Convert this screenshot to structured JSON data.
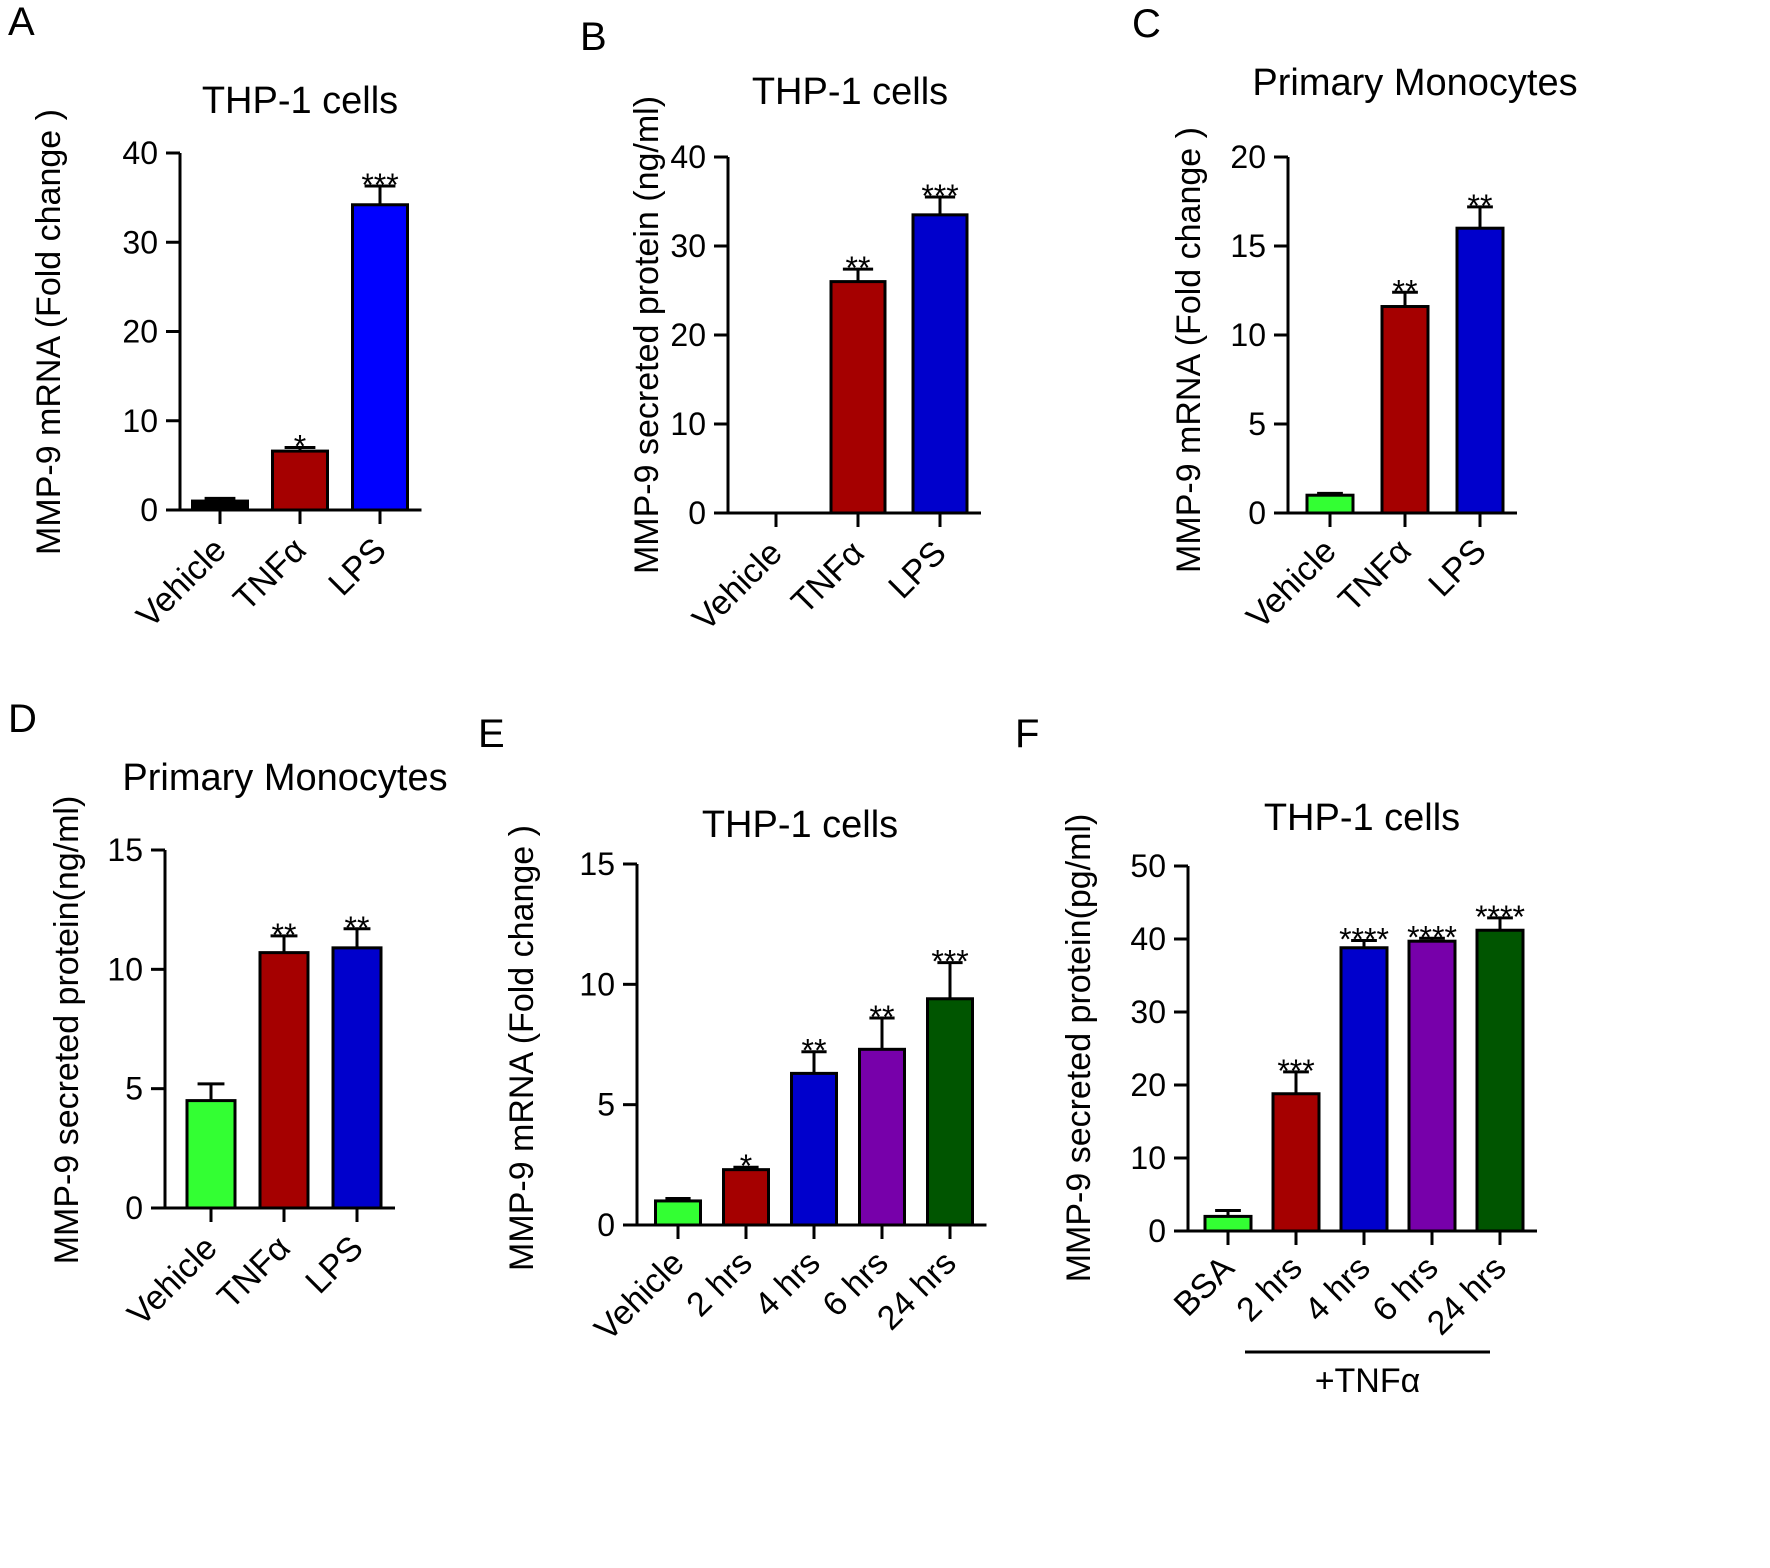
{
  "figure_title": "",
  "chart_data": [
    {
      "panel": "A",
      "type": "bar",
      "title": "THP-1 cells",
      "xlabel": "",
      "ylabel": "MMP-9 mRNA (Fold change )",
      "categories": [
        "Vehicle",
        "TNFα",
        "LPS"
      ],
      "values": [
        1,
        6.6,
        34.2
      ],
      "errors": [
        0.3,
        0.4,
        2.1
      ],
      "significance": [
        "",
        "*",
        "***"
      ],
      "colors": [
        "#000000",
        "#a50000",
        "#0000ff"
      ],
      "ylim": [
        0,
        40
      ],
      "yticks": [
        0,
        10,
        20,
        30,
        40
      ],
      "group_label": ""
    },
    {
      "panel": "B",
      "type": "bar",
      "title": "THP-1 cells",
      "xlabel": "",
      "ylabel": "MMP-9  secreted protein (ng/ml)",
      "categories": [
        "Vehicle",
        "TNFα",
        "LPS"
      ],
      "values": [
        0,
        26,
        33.5
      ],
      "errors": [
        0,
        1.4,
        2.0
      ],
      "significance": [
        "",
        "**",
        "***"
      ],
      "colors": [
        "#000000",
        "#a50000",
        "#0000cc"
      ],
      "ylim": [
        0,
        40
      ],
      "yticks": [
        0,
        10,
        20,
        30,
        40
      ],
      "group_label": ""
    },
    {
      "panel": "C",
      "type": "bar",
      "title": "Primary Monocytes",
      "xlabel": "",
      "ylabel": "MMP-9 mRNA (Fold change )",
      "categories": [
        "Vehicle",
        "TNFα",
        "LPS"
      ],
      "values": [
        1,
        11.6,
        16
      ],
      "errors": [
        0.1,
        0.8,
        1.2
      ],
      "significance": [
        "",
        "**",
        "**"
      ],
      "colors": [
        "#33ff33",
        "#a50000",
        "#0000cc"
      ],
      "ylim": [
        0,
        20
      ],
      "yticks": [
        0,
        5,
        10,
        15,
        20
      ],
      "group_label": ""
    },
    {
      "panel": "D",
      "type": "bar",
      "title": "Primary Monocytes",
      "xlabel": "",
      "ylabel": "MMP-9 secreted protein(ng/ml)",
      "categories": [
        "Vehicle",
        "TNFα",
        "LPS"
      ],
      "values": [
        4.5,
        10.7,
        10.9
      ],
      "errors": [
        0.7,
        0.7,
        0.8
      ],
      "significance": [
        "",
        "**",
        "**"
      ],
      "colors": [
        "#33ff33",
        "#a50000",
        "#0000cc"
      ],
      "ylim": [
        0,
        15
      ],
      "yticks": [
        0,
        5,
        10,
        15
      ],
      "group_label": ""
    },
    {
      "panel": "E",
      "type": "bar",
      "title": "THP-1 cells",
      "xlabel": "",
      "ylabel": "MMP-9 mRNA (Fold change )",
      "categories": [
        "Vehicle",
        "2 hrs",
        "4 hrs",
        "6 hrs",
        "24 hrs"
      ],
      "values": [
        1,
        2.3,
        6.3,
        7.3,
        9.4
      ],
      "errors": [
        0.1,
        0.1,
        0.9,
        1.3,
        1.5
      ],
      "significance": [
        "",
        "*",
        "**",
        "**",
        "***"
      ],
      "colors": [
        "#33ff33",
        "#a50000",
        "#0000cc",
        "#7700aa",
        "#005500"
      ],
      "ylim": [
        0,
        15
      ],
      "yticks": [
        0,
        5,
        10,
        15
      ],
      "group_label": ""
    },
    {
      "panel": "F",
      "type": "bar",
      "title": "THP-1 cells",
      "xlabel": "",
      "ylabel": "MMP-9 secreted protein(pg/ml)",
      "categories": [
        "BSA",
        "2 hrs",
        "4 hrs",
        "6 hrs",
        "24 hrs"
      ],
      "values": [
        2,
        18.8,
        38.8,
        39.7,
        41.2
      ],
      "errors": [
        0.8,
        3.0,
        1.0,
        0.4,
        1.7
      ],
      "significance": [
        "",
        "***",
        "****",
        "****",
        "****"
      ],
      "colors": [
        "#33ff33",
        "#a50000",
        "#0000cc",
        "#7700aa",
        "#005500"
      ],
      "ylim": [
        0,
        50
      ],
      "yticks": [
        0,
        10,
        20,
        30,
        40,
        50
      ],
      "group_label": "+TNFα"
    }
  ]
}
